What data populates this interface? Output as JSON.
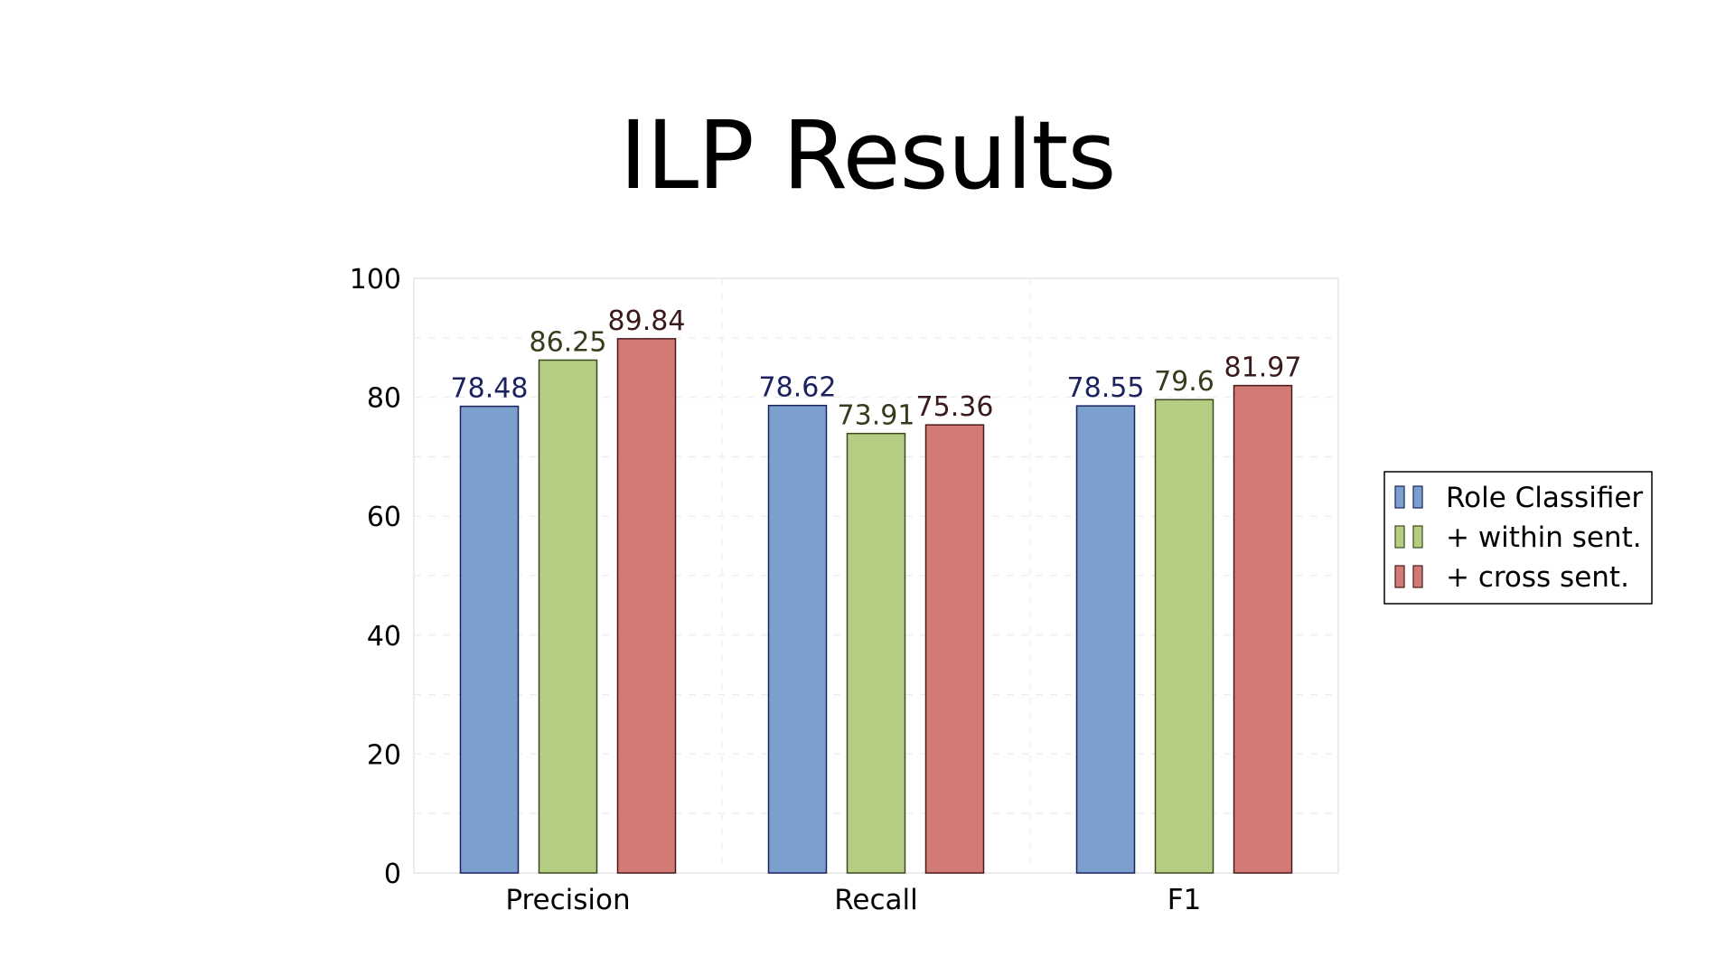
{
  "slide": {
    "title": "ILP Results"
  },
  "chart_data": {
    "type": "bar",
    "title": "",
    "xlabel": "",
    "ylabel": "",
    "categories": [
      "Precision",
      "Recall",
      "F1"
    ],
    "series": [
      {
        "name": "Role Classifier",
        "values": [
          78.48,
          78.62,
          78.55
        ],
        "color": "#7ba0cd",
        "stroke": "#1c2260",
        "label_color": "#1c2260"
      },
      {
        "name": "+ within sent.",
        "values": [
          86.25,
          73.91,
          79.6
        ],
        "color": "#b5cd82",
        "stroke": "#3a4a1e",
        "label_color": "#3a3a1c"
      },
      {
        "name": "+ cross sent.",
        "values": [
          89.84,
          75.36,
          81.97
        ],
        "color": "#d27b76",
        "stroke": "#4a1a1a",
        "label_color": "#3a1a1a"
      }
    ],
    "ylim": [
      0,
      100
    ],
    "yticks": [
      0,
      20,
      40,
      60,
      80,
      100
    ],
    "data_labels": true,
    "grid": true,
    "legend_position": "right"
  }
}
